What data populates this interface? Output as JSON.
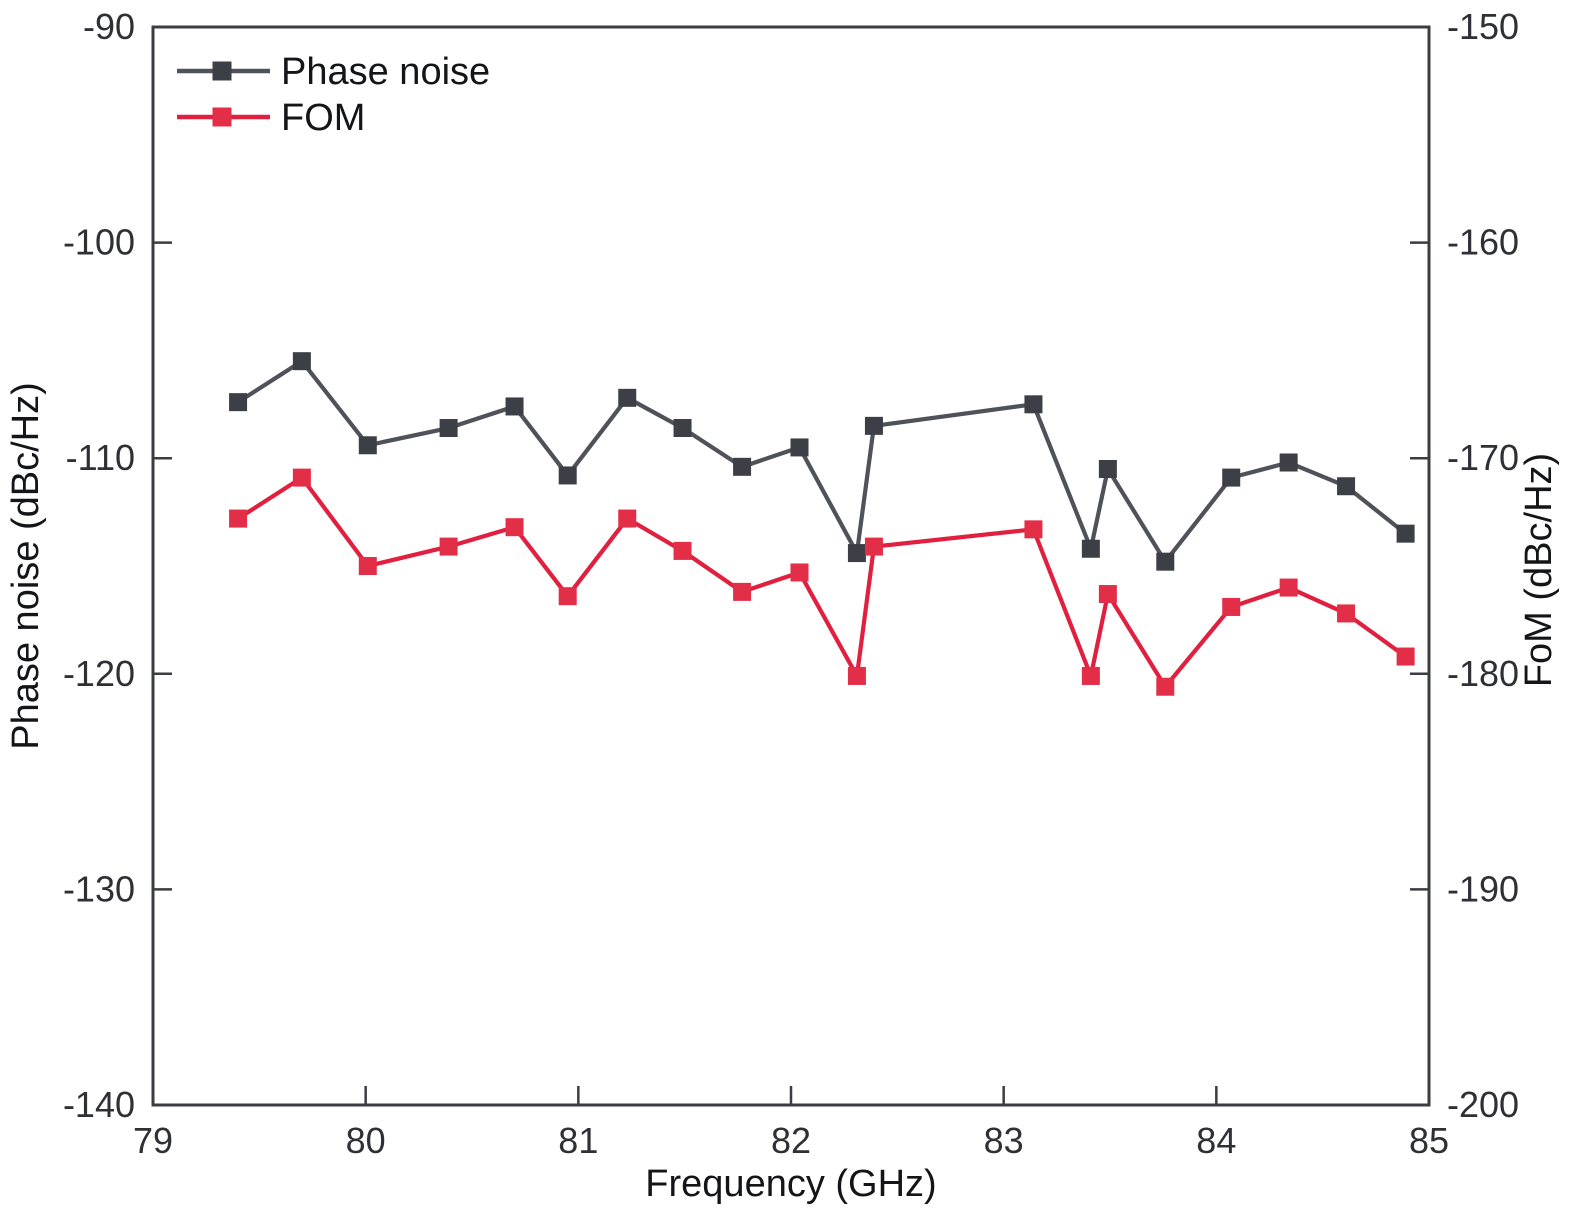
{
  "chart_data": {
    "type": "line",
    "title": "",
    "xlabel": "Frequency (GHz)",
    "ylabel_left": "Phase noise (dBc/Hz)",
    "ylabel_right": "FoM (dBc/Hz)",
    "xlim": [
      79,
      85
    ],
    "ylim_left": [
      -140,
      -90
    ],
    "ylim_right": [
      -200,
      -150
    ],
    "x_ticks": [
      79,
      80,
      81,
      82,
      83,
      84,
      85
    ],
    "y_ticks_left": [
      -90,
      -100,
      -110,
      -120,
      -130,
      -140
    ],
    "y_ticks_right": [
      -150,
      -160,
      -170,
      -180,
      -190,
      -200
    ],
    "grid": false,
    "legend_position": "top-left-inside",
    "frame_color": "#3b3d43",
    "x": [
      79.4,
      79.7,
      80.01,
      80.39,
      80.7,
      80.95,
      81.23,
      81.49,
      81.77,
      82.04,
      82.31,
      82.39,
      83.14,
      83.41,
      83.49,
      83.76,
      84.07,
      84.34,
      84.61,
      84.89
    ],
    "series": [
      {
        "name": "Phase noise",
        "axis": "left",
        "marker": "square",
        "line_color": "#50525a",
        "marker_color": "#3c3f46",
        "values": [
          -107.4,
          -105.5,
          -109.4,
          -108.6,
          -107.6,
          -110.8,
          -107.2,
          -108.6,
          -110.4,
          -109.5,
          -114.4,
          -108.5,
          -107.5,
          -114.2,
          -110.5,
          -114.8,
          -110.9,
          -110.2,
          -111.3,
          -113.5
        ]
      },
      {
        "name": "FOM",
        "axis": "right",
        "marker": "square",
        "line_color": "#e11f3f",
        "marker_color": "#e32e48",
        "values": [
          -172.8,
          -170.9,
          -175.0,
          -174.1,
          -173.2,
          -176.4,
          -172.8,
          -174.3,
          -176.2,
          -175.3,
          -180.1,
          -174.1,
          -173.3,
          -180.1,
          -176.3,
          -180.6,
          -176.9,
          -176.0,
          -177.2,
          -179.2
        ]
      }
    ],
    "legend": [
      {
        "label": "Phase noise"
      },
      {
        "label": "FOM"
      }
    ]
  }
}
